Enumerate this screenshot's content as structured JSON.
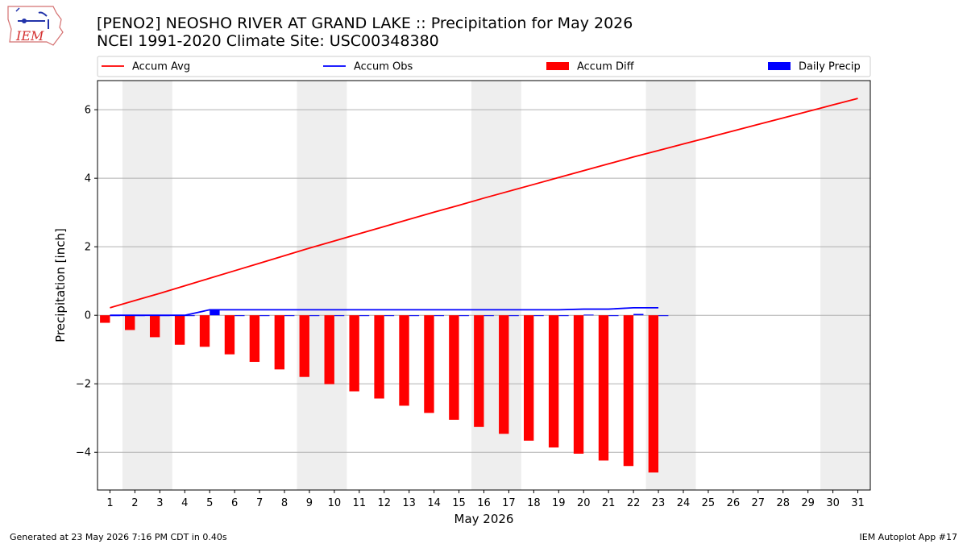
{
  "header": {
    "title_line1": "[PENO2] NEOSHO RIVER  AT GRAND LAKE :: Precipitation for May 2026",
    "title_line2": "NCEI 1991-2020 Climate Site: USC00348380",
    "logo_text": "IEM"
  },
  "footer": {
    "left": "Generated at 23 May 2026 7:16 PM CDT in 0.40s",
    "right": "IEM Autoplot App #17"
  },
  "colors": {
    "accum_avg": "#ff0000",
    "accum_obs": "#0000ff",
    "accum_diff": "#ff0000",
    "daily_precip": "#0000ff",
    "weekend_shade": "#eeeeee",
    "grid": "#b0b0b0"
  },
  "chart_data": {
    "type": "bar",
    "xlabel": "May 2026",
    "ylabel": "Precipitation [inch]",
    "xlim": [
      0.5,
      31.5
    ],
    "ylim": [
      -5.1,
      6.85
    ],
    "yticks": [
      -4,
      -2,
      0,
      2,
      4,
      6
    ],
    "grid": "horizontal",
    "legend_placement": "top",
    "legend": [
      {
        "label": "Accum Avg",
        "kind": "line",
        "color": "#ff0000"
      },
      {
        "label": "Accum Obs",
        "kind": "line",
        "color": "#0000ff"
      },
      {
        "label": "Accum Diff",
        "kind": "bar",
        "color": "#ff0000"
      },
      {
        "label": "Daily Precip",
        "kind": "bar",
        "color": "#0000ff"
      }
    ],
    "shaded_days": [
      [
        1.5,
        3.5
      ],
      [
        8.5,
        10.5
      ],
      [
        15.5,
        17.5
      ],
      [
        22.5,
        24.5
      ],
      [
        29.5,
        31.5
      ]
    ],
    "days": [
      1,
      2,
      3,
      4,
      5,
      6,
      7,
      8,
      9,
      10,
      11,
      12,
      13,
      14,
      15,
      16,
      17,
      18,
      19,
      20,
      21,
      22,
      23,
      24,
      25,
      26,
      27,
      28,
      29,
      30,
      31
    ],
    "series": [
      {
        "name": "Accum Avg",
        "type": "line",
        "values": [
          0.22,
          0.43,
          0.64,
          0.86,
          1.08,
          1.3,
          1.52,
          1.74,
          1.96,
          2.17,
          2.38,
          2.59,
          2.8,
          3.01,
          3.21,
          3.42,
          3.62,
          3.82,
          4.02,
          4.22,
          4.42,
          4.62,
          4.81,
          5.0,
          5.19,
          5.38,
          5.57,
          5.76,
          5.95,
          6.14,
          6.33
        ]
      },
      {
        "name": "Accum Obs",
        "type": "line",
        "values": [
          0.0,
          0.0,
          0.0,
          0.0,
          0.16,
          0.16,
          0.16,
          0.16,
          0.16,
          0.16,
          0.16,
          0.16,
          0.16,
          0.16,
          0.16,
          0.16,
          0.16,
          0.16,
          0.16,
          0.18,
          0.18,
          0.22,
          0.22
        ]
      },
      {
        "name": "Accum Diff",
        "type": "bar",
        "values": [
          -0.22,
          -0.43,
          -0.64,
          -0.86,
          -0.92,
          -1.14,
          -1.36,
          -1.58,
          -1.8,
          -2.01,
          -2.22,
          -2.43,
          -2.64,
          -2.85,
          -3.05,
          -3.26,
          -3.46,
          -3.66,
          -3.86,
          -4.04,
          -4.24,
          -4.4,
          -4.59
        ]
      },
      {
        "name": "Daily Precip",
        "type": "bar",
        "values": [
          0.0,
          0.0,
          0.0,
          0.0,
          0.16,
          0.0,
          0.0,
          0.0,
          0.0,
          0.0,
          0.0,
          0.0,
          0.0,
          0.0,
          0.0,
          0.0,
          0.0,
          0.0,
          0.0,
          0.02,
          0.0,
          0.04,
          0.0
        ]
      }
    ]
  }
}
